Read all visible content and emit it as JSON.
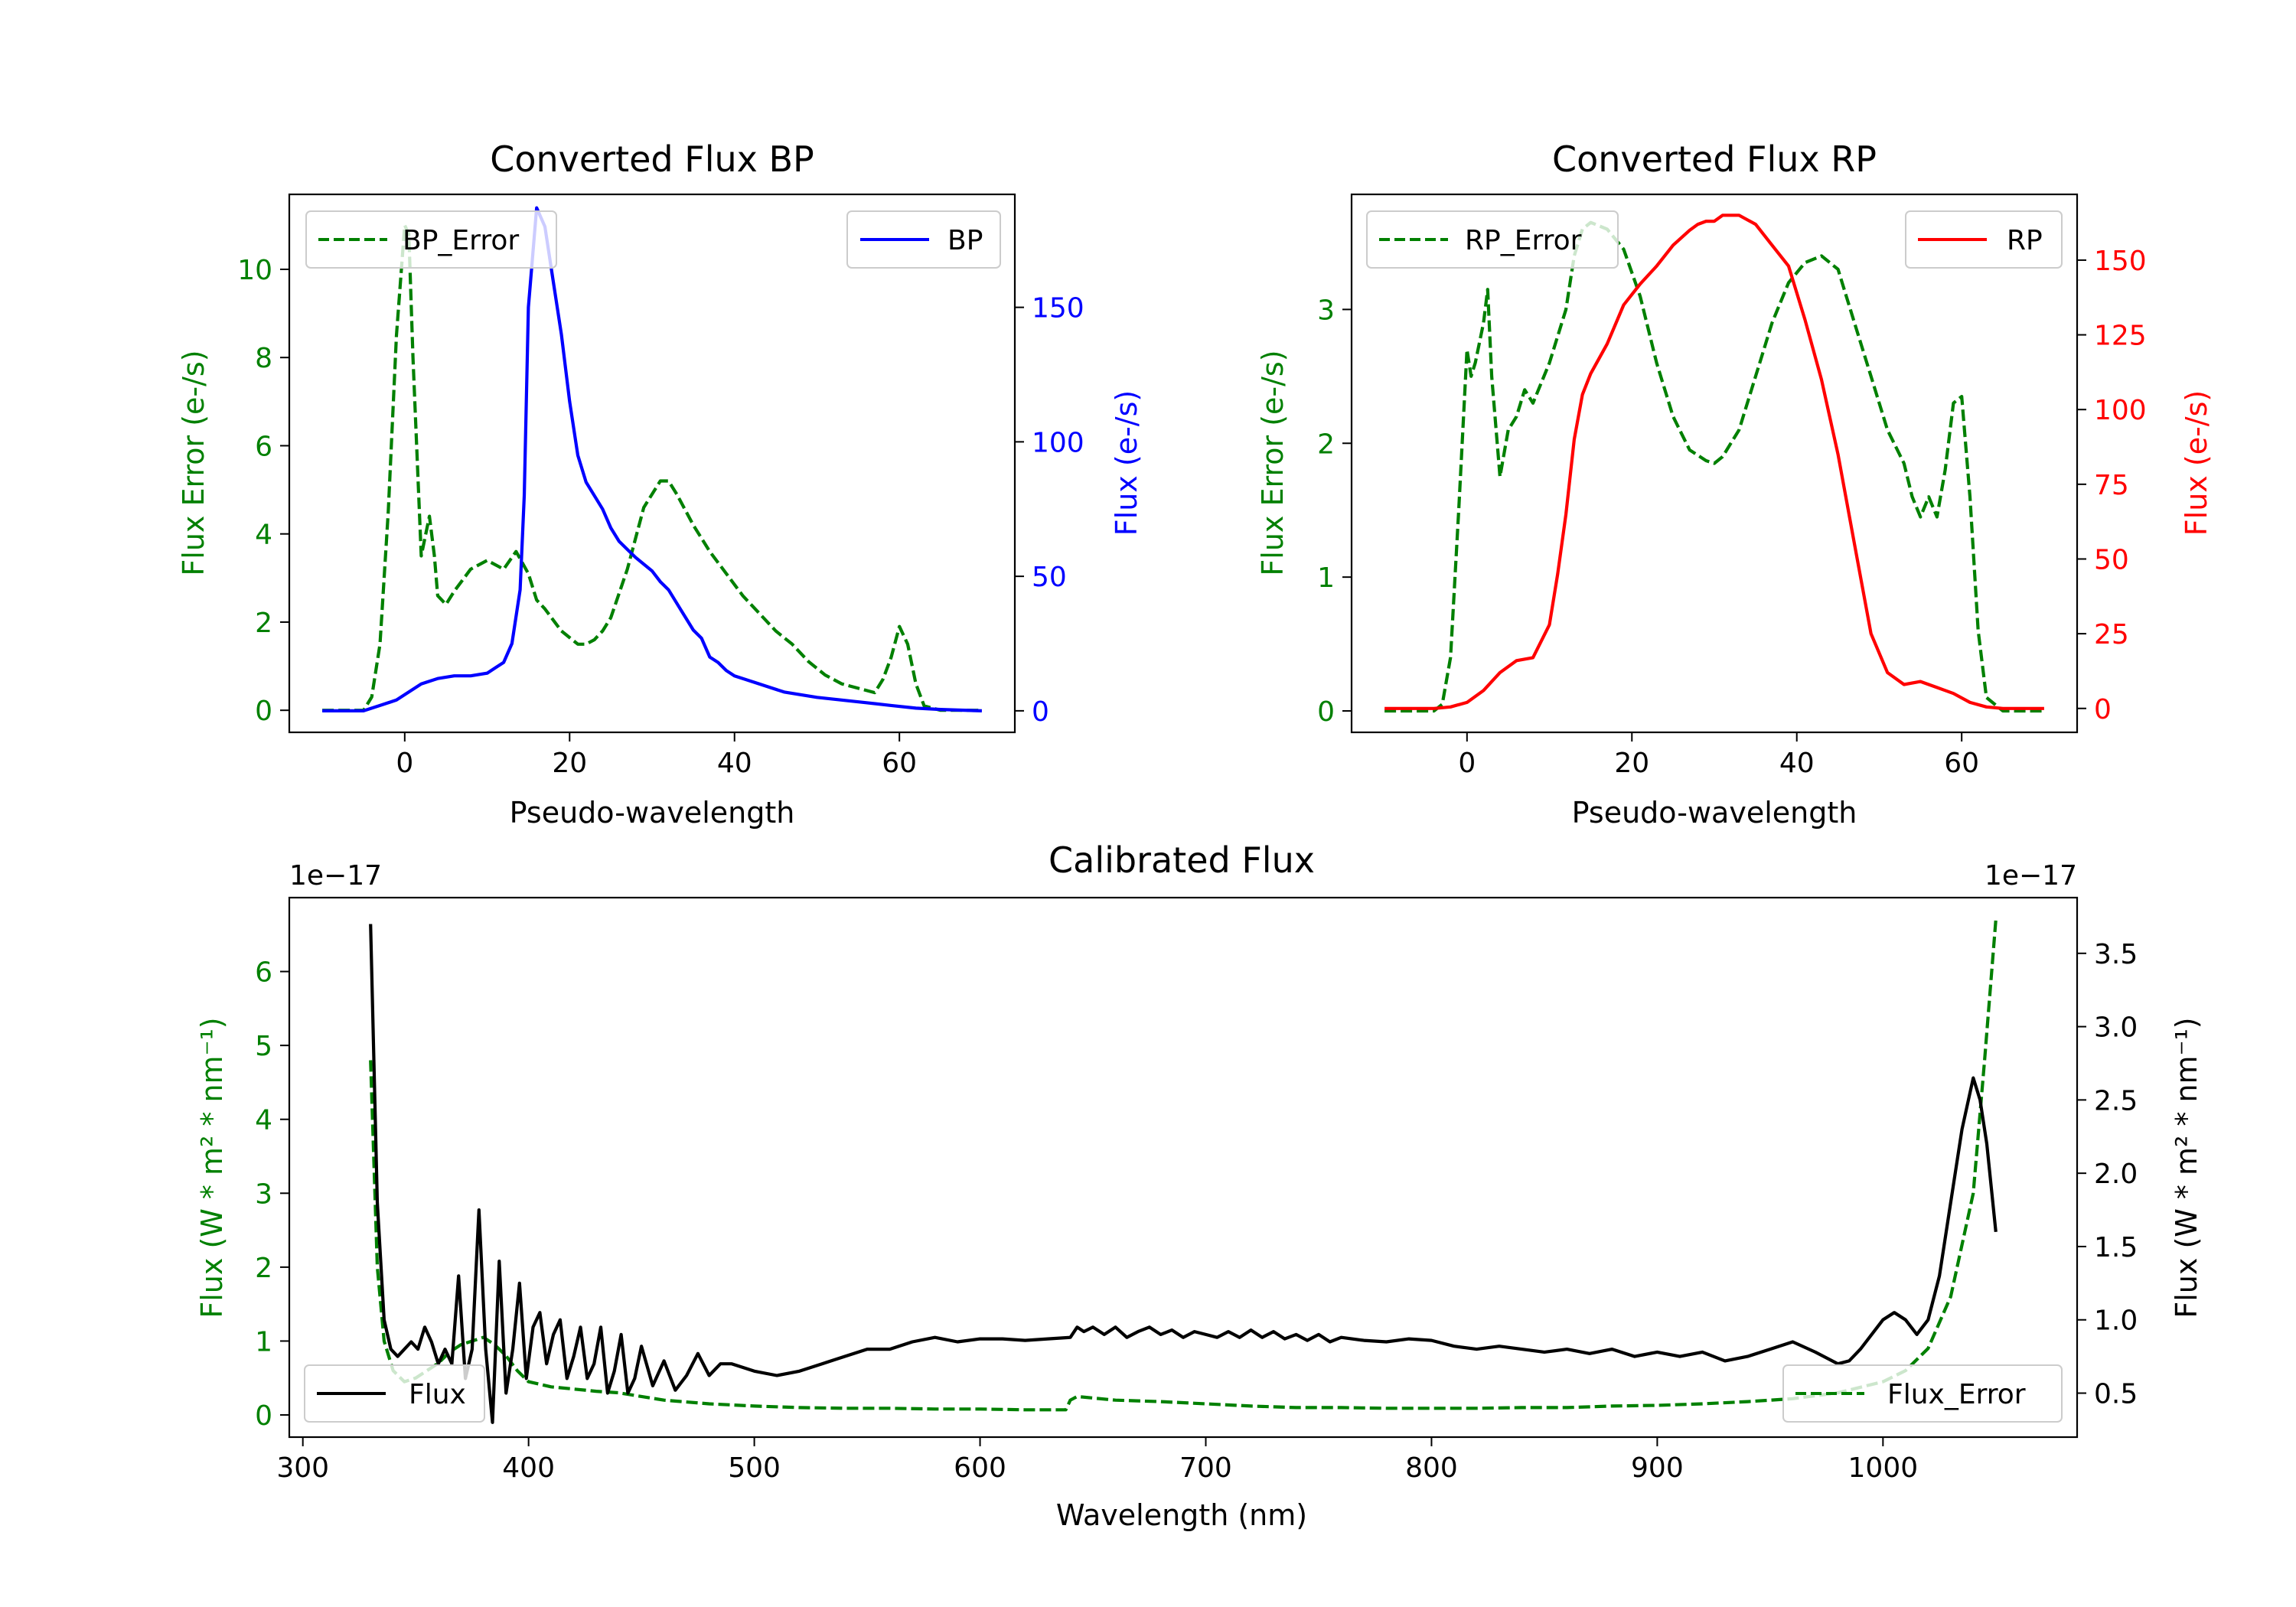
{
  "colors": {
    "green": "#008000",
    "blue": "#0000ff",
    "red": "#ff0000",
    "black": "#000000"
  },
  "chart_data": [
    {
      "type": "line",
      "title": "Converted Flux BP",
      "xlabel": "Pseudo-wavelength",
      "xlim": [
        -14,
        74
      ],
      "xticks": [
        0,
        20,
        40,
        60
      ],
      "left_axis": {
        "label": "Flux Error (e-/s)",
        "color": "#008000",
        "ylim": [
          -0.5,
          11.7
        ],
        "ticks": [
          0,
          2,
          4,
          6,
          8,
          10
        ]
      },
      "right_axis": {
        "label": "Flux (e-/s)",
        "color": "#0000ff",
        "ylim": [
          -8,
          192
        ],
        "ticks": [
          0,
          50,
          100,
          150
        ]
      },
      "series": [
        {
          "name": "BP_Error",
          "axis": "left",
          "style": "dashed",
          "color": "#008000",
          "x": [
            -10,
            -5,
            -4,
            -3,
            -2,
            -1,
            0,
            0.5,
            1,
            2,
            3,
            3.6,
            4,
            5,
            6,
            8,
            10,
            12,
            13.5,
            15,
            16,
            17,
            19,
            21,
            22,
            23,
            24,
            25,
            27,
            29,
            31,
            32,
            33,
            35,
            37,
            39,
            41,
            43,
            45,
            47,
            49,
            51,
            53,
            55,
            57,
            58,
            59,
            60,
            61,
            62,
            63,
            65,
            70
          ],
          "values": [
            0,
            0,
            0.3,
            1.5,
            4.5,
            8.5,
            11.0,
            10.8,
            8.0,
            3.5,
            4.4,
            3.5,
            2.6,
            2.4,
            2.7,
            3.2,
            3.4,
            3.2,
            3.6,
            3.1,
            2.5,
            2.3,
            1.8,
            1.5,
            1.5,
            1.6,
            1.8,
            2.1,
            3.2,
            4.6,
            5.2,
            5.2,
            4.9,
            4.2,
            3.6,
            3.1,
            2.6,
            2.2,
            1.8,
            1.5,
            1.1,
            0.8,
            0.6,
            0.5,
            0.4,
            0.7,
            1.2,
            1.9,
            1.5,
            0.6,
            0.1,
            0,
            0
          ]
        },
        {
          "name": "BP",
          "axis": "right",
          "style": "solid",
          "color": "#0000ff",
          "x": [
            -10,
            -5,
            -3,
            -1,
            0,
            1,
            2,
            3,
            4,
            6,
            8,
            10,
            11,
            12,
            13,
            14,
            14.5,
            15,
            16,
            17,
            18,
            19,
            20,
            21,
            22,
            23,
            24,
            25,
            26,
            27,
            28,
            30,
            31,
            32,
            33,
            34,
            35,
            36,
            37,
            38,
            39,
            40,
            42,
            44,
            46,
            48,
            50,
            53,
            56,
            59,
            62,
            65,
            70
          ],
          "values": [
            0,
            0,
            2,
            4,
            6,
            8,
            10,
            11,
            12,
            13,
            13,
            14,
            16,
            18,
            25,
            45,
            80,
            150,
            187,
            180,
            160,
            140,
            115,
            95,
            85,
            80,
            75,
            68,
            63,
            60,
            57,
            52,
            48,
            45,
            40,
            35,
            30,
            27,
            20,
            18,
            15,
            13,
            11,
            9,
            7,
            6,
            5,
            4,
            3,
            2,
            1,
            0.5,
            0
          ]
        }
      ],
      "legend": [
        {
          "label": "BP_Error",
          "position": "upper-left"
        },
        {
          "label": "BP",
          "position": "upper-right"
        }
      ]
    },
    {
      "type": "line",
      "title": "Converted Flux RP",
      "xlabel": "Pseudo-wavelength",
      "xlim": [
        -14,
        74
      ],
      "xticks": [
        0,
        20,
        40,
        60
      ],
      "left_axis": {
        "label": "Flux Error (e-/s)",
        "color": "#008000",
        "ylim": [
          -0.16,
          3.86
        ],
        "ticks": [
          0,
          1,
          2,
          3
        ]
      },
      "right_axis": {
        "label": "Flux (e-/s)",
        "color": "#ff0000",
        "ylim": [
          -8,
          172
        ],
        "ticks": [
          0,
          25,
          50,
          75,
          100,
          125,
          150
        ]
      },
      "series": [
        {
          "name": "RP_Error",
          "axis": "left",
          "style": "dashed",
          "color": "#008000",
          "x": [
            -10,
            -4,
            -3,
            -2,
            -1,
            0,
            0.5,
            1,
            2,
            2.5,
            3,
            4,
            5,
            6,
            7,
            8,
            10,
            12,
            13,
            14,
            15,
            17,
            19,
            21,
            23,
            25,
            27,
            29,
            30,
            31,
            33,
            35,
            37,
            39,
            41,
            43,
            45,
            47,
            49,
            51,
            53,
            54,
            55,
            56,
            57,
            58,
            59,
            60,
            61,
            62,
            63,
            65,
            70
          ],
          "values": [
            0,
            0,
            0.05,
            0.4,
            1.5,
            2.7,
            2.5,
            2.6,
            2.9,
            3.15,
            2.5,
            1.75,
            2.1,
            2.2,
            2.4,
            2.3,
            2.6,
            3.0,
            3.4,
            3.6,
            3.65,
            3.6,
            3.45,
            3.1,
            2.6,
            2.2,
            1.95,
            1.87,
            1.85,
            1.9,
            2.1,
            2.5,
            2.9,
            3.2,
            3.35,
            3.4,
            3.3,
            2.9,
            2.5,
            2.1,
            1.85,
            1.6,
            1.45,
            1.6,
            1.45,
            1.8,
            2.3,
            2.35,
            1.6,
            0.6,
            0.1,
            0,
            0
          ]
        },
        {
          "name": "RP",
          "axis": "right",
          "style": "solid",
          "color": "#ff0000",
          "x": [
            -10,
            -4,
            -2,
            0,
            2,
            4,
            6,
            8,
            10,
            11,
            12,
            13,
            14,
            15,
            17,
            19,
            21,
            23,
            25,
            27,
            28,
            29,
            30,
            31,
            33,
            35,
            37,
            39,
            41,
            43,
            45,
            47,
            49,
            51,
            53,
            55,
            57,
            59,
            61,
            63,
            65,
            70
          ],
          "values": [
            0,
            0,
            0.5,
            2,
            6,
            12,
            16,
            17,
            28,
            45,
            65,
            90,
            105,
            112,
            122,
            135,
            142,
            148,
            155,
            160,
            162,
            163,
            163,
            165,
            165,
            162,
            155,
            148,
            130,
            110,
            85,
            55,
            25,
            12,
            8,
            9,
            7,
            5,
            2,
            0.5,
            0,
            0
          ]
        }
      ],
      "legend": [
        {
          "label": "RP_Error",
          "position": "upper-left"
        },
        {
          "label": "RP",
          "position": "upper-right"
        }
      ]
    },
    {
      "type": "line",
      "title": "Calibrated Flux",
      "xlabel": "Wavelength (nm)",
      "xlim": [
        294,
        1086
      ],
      "xticks": [
        300,
        400,
        500,
        600,
        700,
        800,
        900,
        1000
      ],
      "left_axis": {
        "label": "Flux (W * m² * nm⁻¹)",
        "color": "#008000",
        "ylim": [
          -0.3,
          7.0
        ],
        "ticks": [
          0,
          1,
          2,
          3,
          4,
          5,
          6
        ],
        "offset_text": "1e−17"
      },
      "right_axis": {
        "label": "Flux (W * m² * nm⁻¹)",
        "color": "#000000",
        "ylim": [
          0.2,
          3.88
        ],
        "ticks": [
          0.5,
          1.0,
          1.5,
          2.0,
          2.5,
          3.0,
          3.5
        ],
        "offset_text": "1e−17"
      },
      "series": [
        {
          "name": "Flux_Error",
          "axis": "left",
          "style": "dashed",
          "color": "#008000",
          "x": [
            330,
            333,
            336,
            340,
            345,
            350,
            355,
            360,
            365,
            370,
            375,
            380,
            385,
            390,
            395,
            400,
            410,
            420,
            430,
            440,
            450,
            460,
            480,
            500,
            520,
            540,
            560,
            580,
            600,
            620,
            638,
            640,
            643,
            660,
            680,
            700,
            720,
            740,
            760,
            780,
            800,
            820,
            840,
            860,
            880,
            900,
            920,
            940,
            960,
            980,
            1000,
            1010,
            1020,
            1030,
            1040,
            1045,
            1050
          ],
          "values": [
            4.8,
            2.0,
            1.0,
            0.6,
            0.45,
            0.5,
            0.6,
            0.7,
            0.85,
            0.95,
            1.0,
            1.05,
            0.95,
            0.8,
            0.6,
            0.45,
            0.38,
            0.35,
            0.32,
            0.3,
            0.25,
            0.2,
            0.15,
            0.12,
            0.1,
            0.09,
            0.09,
            0.08,
            0.08,
            0.07,
            0.07,
            0.2,
            0.25,
            0.2,
            0.18,
            0.15,
            0.12,
            0.1,
            0.1,
            0.09,
            0.09,
            0.09,
            0.1,
            0.1,
            0.12,
            0.13,
            0.15,
            0.18,
            0.22,
            0.3,
            0.45,
            0.6,
            0.9,
            1.6,
            3.0,
            4.8,
            6.7
          ]
        },
        {
          "name": "Flux",
          "axis": "right",
          "style": "solid",
          "color": "#000000",
          "x": [
            330,
            333,
            336,
            339,
            342,
            345,
            348,
            351,
            354,
            357,
            360,
            363,
            366,
            369,
            372,
            375,
            378,
            381,
            384,
            387,
            390,
            393,
            396,
            399,
            402,
            405,
            408,
            411,
            414,
            417,
            420,
            423,
            426,
            429,
            432,
            435,
            438,
            441,
            444,
            447,
            450,
            455,
            460,
            465,
            470,
            475,
            480,
            485,
            490,
            500,
            510,
            520,
            530,
            540,
            550,
            560,
            570,
            580,
            590,
            600,
            610,
            620,
            630,
            640,
            643,
            646,
            650,
            655,
            660,
            665,
            670,
            675,
            680,
            685,
            690,
            695,
            700,
            705,
            710,
            715,
            720,
            725,
            730,
            735,
            740,
            745,
            750,
            755,
            760,
            770,
            780,
            790,
            800,
            810,
            820,
            830,
            840,
            850,
            860,
            870,
            880,
            890,
            900,
            910,
            920,
            930,
            940,
            950,
            960,
            970,
            980,
            985,
            990,
            1000,
            1005,
            1010,
            1015,
            1020,
            1025,
            1030,
            1035,
            1040,
            1043,
            1046,
            1050
          ],
          "values": [
            3.7,
            1.8,
            1.0,
            0.8,
            0.75,
            0.8,
            0.85,
            0.8,
            0.95,
            0.85,
            0.7,
            0.8,
            0.7,
            1.3,
            0.6,
            0.8,
            1.75,
            0.8,
            0.3,
            1.4,
            0.5,
            0.8,
            1.25,
            0.6,
            0.95,
            1.05,
            0.7,
            0.9,
            1.0,
            0.6,
            0.75,
            0.95,
            0.6,
            0.7,
            0.95,
            0.5,
            0.65,
            0.9,
            0.5,
            0.6,
            0.82,
            0.55,
            0.72,
            0.52,
            0.62,
            0.77,
            0.62,
            0.7,
            0.7,
            0.65,
            0.62,
            0.65,
            0.7,
            0.75,
            0.8,
            0.8,
            0.85,
            0.88,
            0.85,
            0.87,
            0.87,
            0.86,
            0.87,
            0.88,
            0.95,
            0.92,
            0.95,
            0.9,
            0.95,
            0.88,
            0.92,
            0.95,
            0.9,
            0.93,
            0.88,
            0.92,
            0.9,
            0.88,
            0.92,
            0.88,
            0.93,
            0.88,
            0.92,
            0.87,
            0.9,
            0.86,
            0.9,
            0.85,
            0.88,
            0.86,
            0.85,
            0.87,
            0.86,
            0.82,
            0.8,
            0.82,
            0.8,
            0.78,
            0.8,
            0.77,
            0.8,
            0.75,
            0.78,
            0.75,
            0.78,
            0.72,
            0.75,
            0.8,
            0.85,
            0.78,
            0.7,
            0.72,
            0.8,
            1.0,
            1.05,
            1.0,
            0.9,
            1.0,
            1.3,
            1.8,
            2.3,
            2.65,
            2.5,
            2.2,
            1.6
          ]
        }
      ],
      "legend": [
        {
          "label": "Flux",
          "position": "lower-left"
        },
        {
          "label": "Flux_Error",
          "position": "lower-right"
        }
      ]
    }
  ]
}
